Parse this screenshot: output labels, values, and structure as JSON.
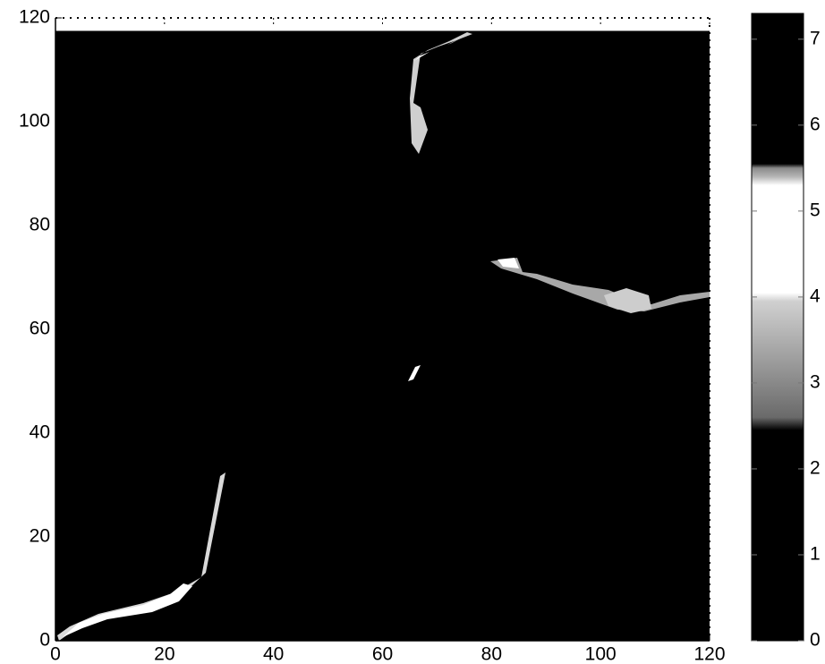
{
  "chart_data": {
    "type": "heatmap",
    "xlim": [
      0,
      120
    ],
    "ylim": [
      0,
      120
    ],
    "xticks": [
      0,
      20,
      40,
      60,
      80,
      100,
      120
    ],
    "yticks": [
      0,
      20,
      40,
      60,
      80,
      100,
      120
    ],
    "image_extent": [
      0,
      120,
      0,
      117.5
    ],
    "colorbar": {
      "clim": [
        0,
        7.3
      ],
      "ticks": [
        0,
        1,
        2,
        3,
        4,
        5,
        6,
        7
      ],
      "colormap": [
        {
          "value": 7.3,
          "color": "#000000"
        },
        {
          "value": 5.55,
          "color": "#000000"
        },
        {
          "value": 5.5,
          "color": "#8a8a8a"
        },
        {
          "value": 5.4,
          "color": "#b5b5b5"
        },
        {
          "value": 5.3,
          "color": "#ffffff"
        },
        {
          "value": 4.05,
          "color": "#ffffff"
        },
        {
          "value": 3.95,
          "color": "#d0d0d0"
        },
        {
          "value": 3.3,
          "color": "#a0a0a0"
        },
        {
          "value": 2.6,
          "color": "#6a6a6a"
        },
        {
          "value": 2.45,
          "color": "#000000"
        },
        {
          "value": 0,
          "color": "#000000"
        }
      ]
    }
  }
}
